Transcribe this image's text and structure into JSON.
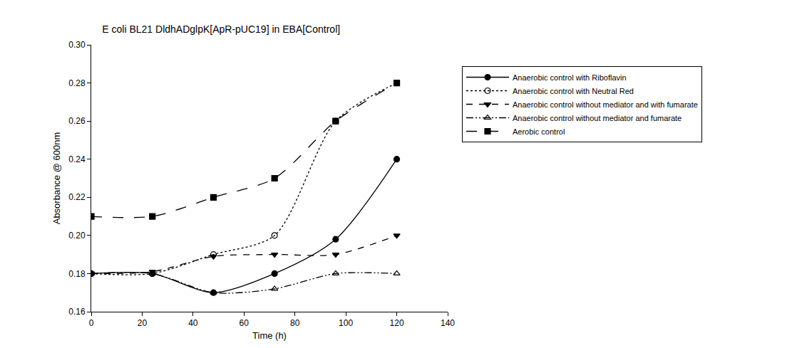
{
  "chart_data": {
    "type": "line",
    "title": "E coli BL21 DldhADglpK[ApR-pUC19] in EBA[Control]",
    "x_label": "Time (h)",
    "y_label": "Absorbance @ 600nm",
    "x": [
      0,
      24,
      48,
      72,
      96,
      120
    ],
    "xlim": [
      0,
      140
    ],
    "xticks": [
      0,
      20,
      40,
      60,
      80,
      100,
      120,
      140
    ],
    "ylim": [
      0.16,
      0.3
    ],
    "yticks": [
      0.16,
      0.18,
      {
        "value": 0.2,
        "label": "0.20"
      },
      0.22,
      0.24,
      0.26,
      0.28,
      {
        "value": 0.3,
        "label": "0.30"
      }
    ],
    "grid": false,
    "legend": "right",
    "series": [
      {
        "name": "Anaerobic control with Riboflavin",
        "color": "#000000",
        "marker": "circle",
        "line_style": "solid",
        "values": [
          0.18,
          0.18,
          0.17,
          0.18,
          0.198,
          0.24
        ]
      },
      {
        "name": "Anaerobic control with Neutral Red",
        "color": "#000000",
        "marker": "circle-open",
        "line_style": "dotted",
        "values": [
          0.18,
          0.18,
          0.19,
          0.2,
          0.26,
          0.28
        ]
      },
      {
        "name": "Anaerobic control without mediator and with fumarate",
        "color": "#000000",
        "marker": "triangle-down",
        "line_style": "dashed",
        "values": [
          0.18,
          0.181,
          0.189,
          0.19,
          0.19,
          0.2
        ]
      },
      {
        "name": "Anaerobic control without mediator and fumarate",
        "color": "#000000",
        "marker": "triangle-up-open",
        "line_style": "dash-dot-dot",
        "values": [
          0.18,
          0.18,
          0.17,
          0.172,
          0.18,
          0.18
        ]
      },
      {
        "name": "Aerobic control",
        "color": "#000000",
        "marker": "square",
        "line_style": "long-dash",
        "values": [
          0.21,
          0.21,
          0.22,
          0.23,
          0.26,
          0.28
        ]
      }
    ]
  }
}
